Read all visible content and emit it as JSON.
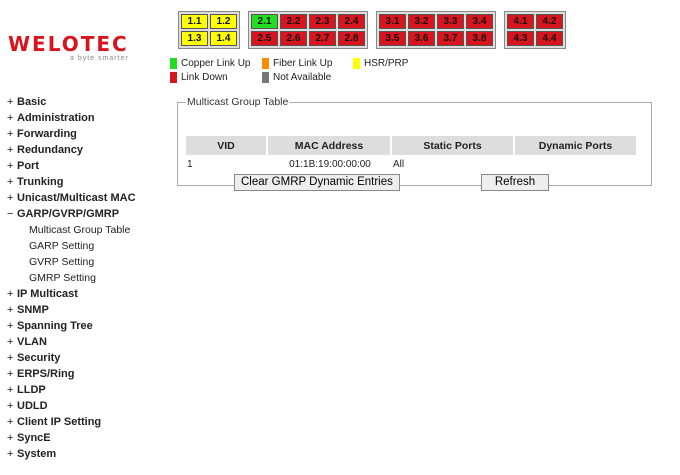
{
  "logo": {
    "wordmark": "WELOTEC",
    "tagline": "a byte smarter"
  },
  "colors": {
    "copper": "#22dd22",
    "fiber": "#ff8c00",
    "hsr": "#ffff00",
    "down": "#d8141e",
    "na": "#777777"
  },
  "port_groups": [
    {
      "cols": 2,
      "ports": [
        {
          "label": "1.1",
          "status": "hsr"
        },
        {
          "label": "1.2",
          "status": "hsr"
        },
        {
          "label": "1.3",
          "status": "hsr"
        },
        {
          "label": "1.4",
          "status": "hsr"
        }
      ]
    },
    {
      "cols": 4,
      "ports": [
        {
          "label": "2.1",
          "status": "copper"
        },
        {
          "label": "2.2",
          "status": "down"
        },
        {
          "label": "2.3",
          "status": "down"
        },
        {
          "label": "2.4",
          "status": "down"
        },
        {
          "label": "2.5",
          "status": "down"
        },
        {
          "label": "2.6",
          "status": "down"
        },
        {
          "label": "2.7",
          "status": "down"
        },
        {
          "label": "2.8",
          "status": "down"
        }
      ]
    },
    {
      "cols": 4,
      "ports": [
        {
          "label": "3.1",
          "status": "down"
        },
        {
          "label": "3.2",
          "status": "down"
        },
        {
          "label": "3.3",
          "status": "down"
        },
        {
          "label": "3.4",
          "status": "down"
        },
        {
          "label": "3.5",
          "status": "down"
        },
        {
          "label": "3.6",
          "status": "down"
        },
        {
          "label": "3.7",
          "status": "down"
        },
        {
          "label": "3.8",
          "status": "down"
        }
      ]
    },
    {
      "cols": 2,
      "ports": [
        {
          "label": "4.1",
          "status": "down"
        },
        {
          "label": "4.2",
          "status": "down"
        },
        {
          "label": "4.3",
          "status": "down"
        },
        {
          "label": "4.4",
          "status": "down"
        }
      ]
    }
  ],
  "legend": {
    "copper": "Copper Link Up",
    "fiber": "Fiber Link Up",
    "hsr": "HSR/PRP",
    "down": "Link Down",
    "na": "Not Available"
  },
  "sidebar": [
    {
      "pm": "+",
      "label": "Basic"
    },
    {
      "pm": "+",
      "label": "Administration"
    },
    {
      "pm": "+",
      "label": "Forwarding"
    },
    {
      "pm": "+",
      "label": "Redundancy"
    },
    {
      "pm": "+",
      "label": "Port"
    },
    {
      "pm": "+",
      "label": "Trunking"
    },
    {
      "pm": "+",
      "label": "Unicast/Multicast MAC"
    },
    {
      "pm": "−",
      "label": "GARP/GVRP/GMRP",
      "children": [
        "Multicast Group Table",
        "GARP Setting",
        "GVRP Setting",
        "GMRP Setting"
      ]
    },
    {
      "pm": "+",
      "label": "IP Multicast"
    },
    {
      "pm": "+",
      "label": "SNMP"
    },
    {
      "pm": "+",
      "label": "Spanning Tree"
    },
    {
      "pm": "+",
      "label": "VLAN"
    },
    {
      "pm": "+",
      "label": "Security"
    },
    {
      "pm": "+",
      "label": "ERPS/Ring"
    },
    {
      "pm": "+",
      "label": "LLDP"
    },
    {
      "pm": "+",
      "label": "UDLD"
    },
    {
      "pm": "+",
      "label": "Client IP Setting"
    },
    {
      "pm": "+",
      "label": "SyncE"
    },
    {
      "pm": "+",
      "label": "System"
    }
  ],
  "main": {
    "title": "Multicast Group Table",
    "columns": [
      "VID",
      "MAC Address",
      "Static Ports",
      "Dynamic Ports"
    ],
    "rows": [
      [
        "1",
        "01:1B:19:00:00:00",
        "All",
        ""
      ]
    ],
    "clear_label": "Clear GMRP Dynamic Entries",
    "refresh_label": "Refresh"
  }
}
